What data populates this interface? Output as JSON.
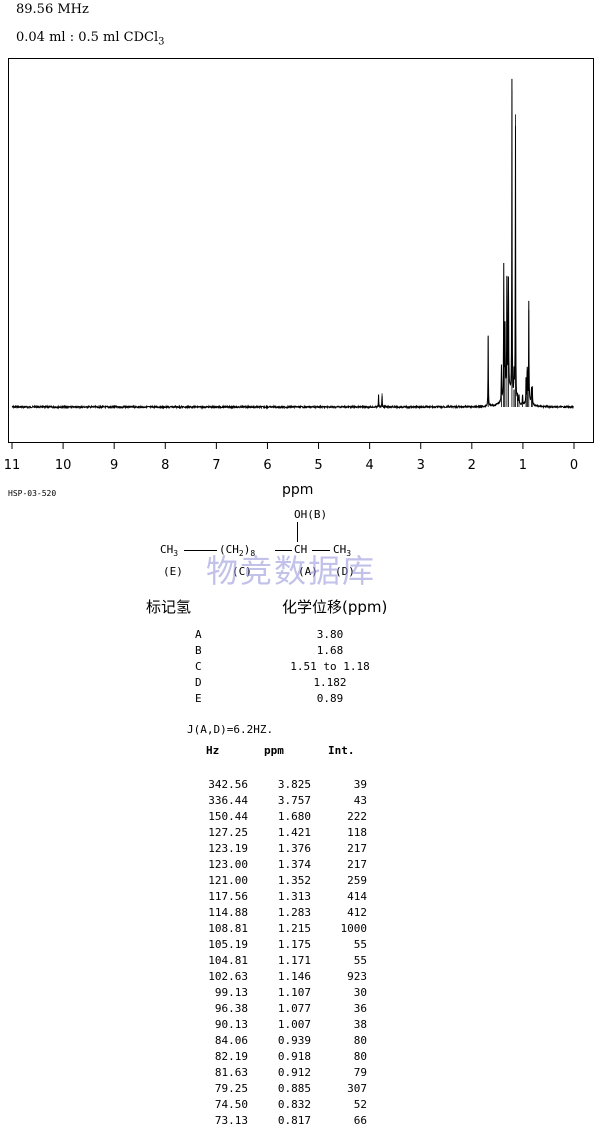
{
  "header": {
    "frequency": "89.56 MHz",
    "sample_prefix": "0.04 ml : 0.5 ml CDCl",
    "sample_subscript": "3"
  },
  "spectrum_code": "HSP-03-520",
  "watermark": "物竞数据库",
  "structure": {
    "oh": "OH(B)",
    "ch3_left": "CH",
    "ch3_left_sub": "3",
    "ch2": "(CH",
    "ch2_sub": "2",
    "ch2_close": ")",
    "ch2_n": "8",
    "ch": "CH",
    "ch3_right": "CH",
    "ch3_right_sub": "3",
    "label_e": "(E)",
    "label_c": "(C)",
    "label_a": "(A)",
    "label_d": "(D)"
  },
  "assignment": {
    "label_heading": "标记氢",
    "shift_heading": "化学位移(ppm)",
    "rows": [
      {
        "label": "A",
        "value": "3.80"
      },
      {
        "label": "B",
        "value": "1.68"
      },
      {
        "label": "C",
        "value": "1.51 to 1.18"
      },
      {
        "label": "D",
        "value": "1.182"
      },
      {
        "label": "E",
        "value": "0.89"
      }
    ]
  },
  "coupling": "J(A,D)=6.2HZ.",
  "peak_table": {
    "headers": {
      "hz": "Hz",
      "ppm": "ppm",
      "int": "Int."
    },
    "rows": [
      [
        "342.56",
        "3.825",
        "39"
      ],
      [
        "336.44",
        "3.757",
        "43"
      ],
      [
        "150.44",
        "1.680",
        "222"
      ],
      [
        "127.25",
        "1.421",
        "118"
      ],
      [
        "123.19",
        "1.376",
        "217"
      ],
      [
        "123.00",
        "1.374",
        "217"
      ],
      [
        "121.00",
        "1.352",
        "259"
      ],
      [
        "117.56",
        "1.313",
        "414"
      ],
      [
        "114.88",
        "1.283",
        "412"
      ],
      [
        "108.81",
        "1.215",
        "1000"
      ],
      [
        "105.19",
        "1.175",
        "55"
      ],
      [
        "104.81",
        "1.171",
        "55"
      ],
      [
        "102.63",
        "1.146",
        "923"
      ],
      [
        "99.13",
        "1.107",
        "30"
      ],
      [
        "96.38",
        "1.077",
        "36"
      ],
      [
        "90.13",
        "1.007",
        "38"
      ],
      [
        "84.06",
        "0.939",
        "80"
      ],
      [
        "82.19",
        "0.918",
        "80"
      ],
      [
        "81.63",
        "0.912",
        "79"
      ],
      [
        "79.25",
        "0.885",
        "307"
      ],
      [
        "74.50",
        "0.832",
        "52"
      ],
      [
        "73.13",
        "0.817",
        "66"
      ]
    ]
  },
  "chart_data": {
    "type": "line",
    "title": "",
    "xlabel": "ppm",
    "ylabel": "",
    "xlim": [
      11,
      0
    ],
    "x_reversed": true,
    "x_ticks": [
      11,
      10,
      9,
      8,
      7,
      6,
      5,
      4,
      3,
      2,
      1,
      0
    ],
    "grid": false,
    "series": [
      {
        "x": [
          3.825,
          3.757,
          1.68,
          1.421,
          1.376,
          1.374,
          1.352,
          1.313,
          1.283,
          1.215,
          1.175,
          1.171,
          1.146,
          1.107,
          1.077,
          1.007,
          0.939,
          0.918,
          0.912,
          0.885,
          0.832,
          0.817
        ],
        "y": [
          39,
          43,
          222,
          118,
          217,
          217,
          259,
          414,
          412,
          1000,
          55,
          55,
          923,
          30,
          36,
          38,
          80,
          80,
          79,
          307,
          52,
          66
        ]
      }
    ]
  }
}
